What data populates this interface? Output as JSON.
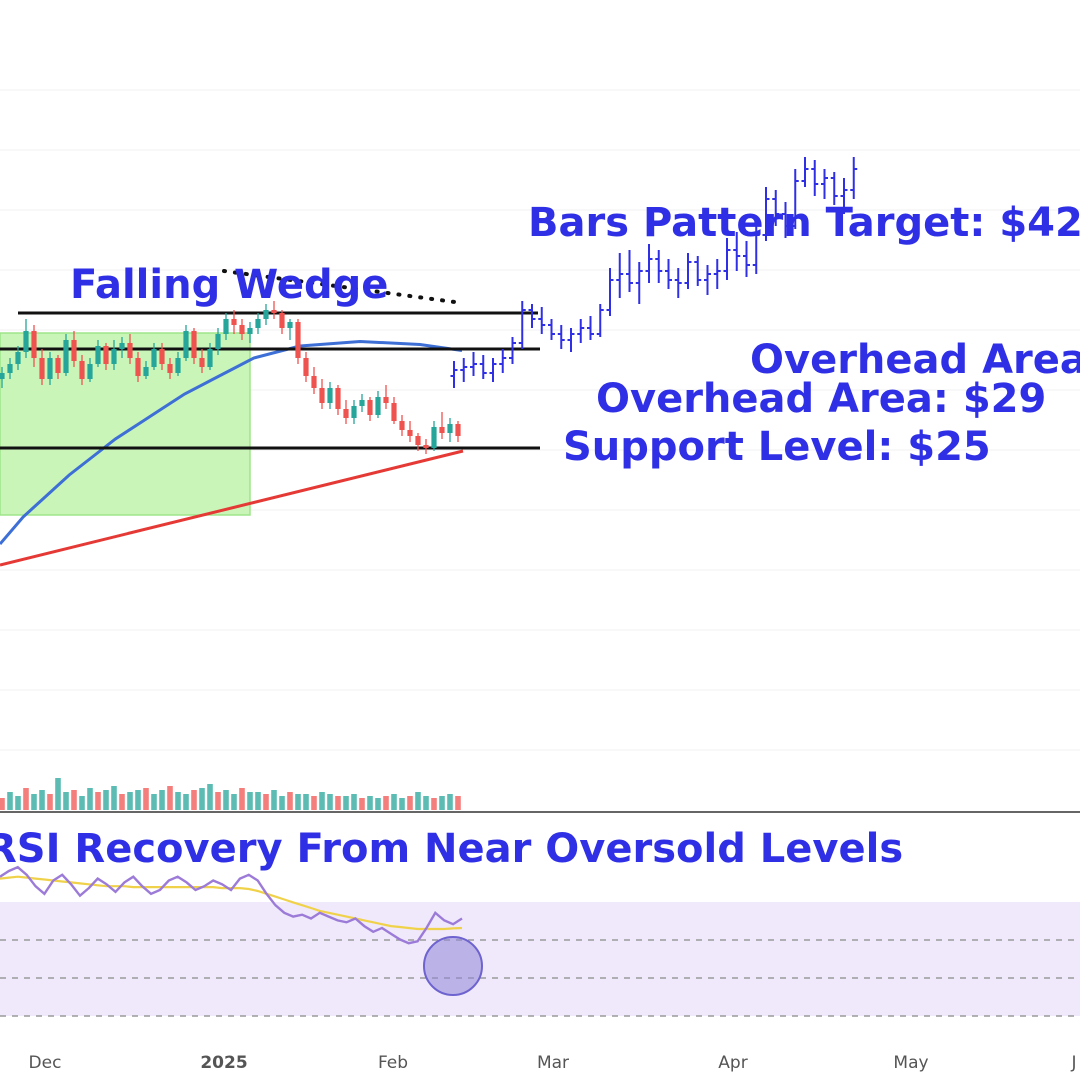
{
  "chart_data": {
    "type": "candlestick",
    "main_panel": {
      "wedge_candles": [
        [
          27.6,
          28.0,
          27.3,
          27.8
        ],
        [
          27.8,
          28.3,
          27.6,
          28.1
        ],
        [
          28.1,
          28.7,
          27.9,
          28.5
        ],
        [
          28.5,
          29.6,
          28.3,
          29.2
        ],
        [
          29.2,
          29.4,
          28.0,
          28.3
        ],
        [
          28.3,
          28.6,
          27.4,
          27.6
        ],
        [
          27.6,
          28.5,
          27.4,
          28.3
        ],
        [
          28.3,
          28.4,
          27.6,
          27.8
        ],
        [
          27.8,
          29.1,
          27.7,
          28.9
        ],
        [
          28.9,
          29.2,
          28.0,
          28.2
        ],
        [
          28.2,
          28.4,
          27.4,
          27.6
        ],
        [
          27.6,
          28.3,
          27.5,
          28.1
        ],
        [
          28.1,
          28.9,
          28.0,
          28.7
        ],
        [
          28.7,
          28.8,
          27.9,
          28.1
        ],
        [
          28.1,
          28.9,
          27.9,
          28.6
        ],
        [
          28.6,
          29.0,
          28.3,
          28.8
        ],
        [
          28.8,
          29.1,
          28.1,
          28.3
        ],
        [
          28.3,
          28.5,
          27.5,
          27.7
        ],
        [
          27.7,
          28.2,
          27.6,
          28.0
        ],
        [
          28.0,
          28.8,
          27.9,
          28.6
        ],
        [
          28.6,
          28.8,
          27.9,
          28.1
        ],
        [
          28.1,
          28.3,
          27.6,
          27.8
        ],
        [
          27.8,
          28.5,
          27.7,
          28.3
        ],
        [
          28.3,
          29.4,
          28.2,
          29.2
        ],
        [
          29.2,
          29.3,
          28.1,
          28.3
        ],
        [
          28.3,
          28.6,
          27.8,
          28.0
        ],
        [
          28.0,
          28.8,
          27.9,
          28.6
        ],
        [
          28.6,
          29.3,
          28.4,
          29.1
        ],
        [
          29.1,
          29.8,
          28.9,
          29.6
        ],
        [
          29.6,
          29.9,
          29.1,
          29.4
        ],
        [
          29.4,
          29.6,
          28.9,
          29.1
        ],
        [
          29.1,
          29.5,
          28.8,
          29.3
        ],
        [
          29.3,
          29.8,
          29.1,
          29.6
        ],
        [
          29.6,
          30.1,
          29.4,
          29.9
        ],
        [
          29.9,
          30.2,
          29.6,
          29.8
        ],
        [
          29.8,
          29.9,
          29.1,
          29.3
        ],
        [
          29.3,
          29.6,
          28.9,
          29.5
        ],
        [
          29.5,
          29.6,
          28.1,
          28.3
        ],
        [
          28.3,
          28.5,
          27.5,
          27.7
        ],
        [
          27.7,
          28.0,
          27.1,
          27.3
        ],
        [
          27.3,
          27.6,
          26.6,
          26.8
        ],
        [
          26.8,
          27.5,
          26.6,
          27.3
        ],
        [
          27.3,
          27.4,
          26.4,
          26.6
        ],
        [
          26.6,
          26.9,
          26.1,
          26.3
        ],
        [
          26.3,
          26.9,
          26.1,
          26.7
        ],
        [
          26.7,
          27.1,
          26.5,
          26.9
        ],
        [
          26.9,
          27.0,
          26.2,
          26.4
        ],
        [
          26.4,
          27.2,
          26.3,
          27.0
        ],
        [
          27.0,
          27.4,
          26.6,
          26.8
        ],
        [
          26.8,
          27.0,
          26.1,
          26.2
        ],
        [
          26.2,
          26.4,
          25.7,
          25.9
        ],
        [
          25.9,
          26.2,
          25.5,
          25.7
        ],
        [
          25.7,
          25.8,
          25.2,
          25.4
        ],
        [
          25.4,
          25.6,
          25.1,
          25.3
        ],
        [
          25.3,
          26.2,
          25.2,
          26.0
        ],
        [
          26.0,
          26.5,
          25.6,
          25.8
        ],
        [
          25.8,
          26.3,
          25.5,
          26.1
        ],
        [
          26.1,
          26.2,
          25.5,
          25.7
        ]
      ],
      "projected_bars": [
        [
          27.7,
          28.2,
          27.3,
          27.9
        ],
        [
          27.9,
          28.3,
          27.5,
          28.0
        ],
        [
          28.0,
          28.5,
          27.7,
          28.1
        ],
        [
          28.1,
          28.4,
          27.6,
          27.8
        ],
        [
          27.8,
          28.3,
          27.5,
          28.1
        ],
        [
          28.1,
          28.6,
          27.8,
          28.3
        ],
        [
          28.3,
          29.0,
          28.1,
          28.8
        ],
        [
          28.8,
          30.2,
          28.6,
          29.9
        ],
        [
          29.9,
          30.1,
          29.3,
          29.6
        ],
        [
          29.6,
          30.0,
          29.1,
          29.4
        ],
        [
          29.4,
          29.6,
          28.9,
          29.1
        ],
        [
          29.1,
          29.4,
          28.6,
          28.9
        ],
        [
          28.9,
          29.3,
          28.5,
          29.1
        ],
        [
          29.1,
          29.6,
          28.8,
          29.3
        ],
        [
          29.3,
          29.7,
          28.9,
          29.1
        ],
        [
          29.1,
          30.1,
          29.0,
          29.9
        ],
        [
          29.9,
          31.3,
          29.7,
          30.9
        ],
        [
          30.9,
          31.8,
          30.3,
          31.1
        ],
        [
          31.1,
          31.9,
          30.5,
          30.8
        ],
        [
          30.8,
          31.5,
          30.1,
          31.2
        ],
        [
          31.2,
          32.1,
          30.8,
          31.6
        ],
        [
          31.6,
          31.9,
          30.8,
          31.2
        ],
        [
          31.2,
          31.6,
          30.6,
          30.9
        ],
        [
          30.9,
          31.3,
          30.3,
          30.8
        ],
        [
          30.8,
          31.8,
          30.6,
          31.5
        ],
        [
          31.5,
          31.7,
          30.7,
          30.9
        ],
        [
          30.9,
          31.4,
          30.4,
          31.1
        ],
        [
          31.1,
          31.6,
          30.6,
          31.2
        ],
        [
          31.2,
          32.3,
          30.9,
          31.9
        ],
        [
          31.9,
          32.5,
          31.2,
          31.7
        ],
        [
          31.7,
          32.2,
          31.0,
          31.4
        ],
        [
          31.4,
          32.8,
          31.1,
          32.4
        ],
        [
          32.4,
          34.0,
          32.2,
          33.6
        ],
        [
          33.6,
          33.9,
          32.7,
          33.1
        ],
        [
          33.1,
          33.5,
          32.3,
          32.7
        ],
        [
          32.7,
          34.6,
          32.6,
          34.2
        ],
        [
          34.2,
          35.0,
          34.0,
          34.6
        ],
        [
          34.6,
          34.9,
          33.7,
          34.1
        ],
        [
          34.1,
          34.6,
          33.6,
          34.3
        ],
        [
          34.3,
          34.5,
          33.4,
          33.7
        ],
        [
          33.7,
          34.3,
          33.1,
          33.9
        ],
        [
          33.9,
          35.0,
          33.6,
          34.6
        ]
      ],
      "horizontal_levels": [
        29.8,
        28.6,
        25.3
      ],
      "wedge_upper_line": [
        [
          31.2,
          26.2
        ],
        [
          30.0,
          25.6
        ]
      ],
      "moving_average_blue": [
        22.1,
        23.0,
        23.7,
        24.4,
        25.0,
        25.6,
        26.1,
        26.6,
        27.1,
        27.5,
        27.9,
        28.3,
        28.5,
        28.7
      ],
      "moving_average_red": [
        21.4,
        25.2
      ]
    },
    "volume": [
      6,
      9,
      7,
      11,
      8,
      10,
      8,
      16,
      9,
      10,
      7,
      11,
      9,
      10,
      12,
      8,
      9,
      10,
      11,
      8,
      10,
      12,
      9,
      8,
      10,
      11,
      13,
      9,
      10,
      8,
      11,
      9,
      9,
      8,
      10,
      7,
      9,
      8,
      8,
      7,
      9,
      8,
      7,
      7,
      8,
      6,
      7,
      6,
      7,
      8,
      6,
      7,
      9,
      7,
      6,
      7,
      8,
      7
    ],
    "rsi": {
      "line": [
        57,
        60,
        62,
        58,
        52,
        48,
        55,
        58,
        53,
        47,
        51,
        56,
        53,
        49,
        54,
        57,
        52,
        48,
        50,
        55,
        57,
        54,
        50,
        52,
        55,
        53,
        50,
        56,
        58,
        55,
        48,
        42,
        38,
        36,
        37,
        35,
        38,
        36,
        34,
        33,
        35,
        31,
        28,
        30,
        27,
        24,
        22,
        23,
        30,
        38,
        34,
        32,
        35
      ],
      "average": [
        56,
        56.5,
        57,
        56.5,
        56,
        55.5,
        55,
        54.5,
        54,
        53.5,
        53,
        52.5,
        52,
        52,
        52,
        51.5,
        51.5,
        51.5,
        51.5,
        51.5,
        51.5,
        51.5,
        51.5,
        51.5,
        51.5,
        51,
        51,
        51,
        50.5,
        49.5,
        48,
        46.5,
        45,
        43.5,
        42,
        40.5,
        39,
        38,
        37,
        36,
        35,
        34,
        33,
        32,
        31,
        30.5,
        30,
        29.5,
        29.5,
        29.5,
        29.5,
        29.8,
        30
      ],
      "levels": [
        70,
        50,
        30
      ]
    },
    "x_tick_labels": [
      "Dec",
      "2025",
      "Feb",
      "Mar",
      "Apr",
      "May",
      "J"
    ],
    "annotations": {
      "target": "Bars Pattern Target: $42",
      "wedge": "Falling Wedge",
      "overhead_upper": "Overhead Area:",
      "overhead": "Overhead Area: $29",
      "support": "Support Level: $25",
      "rsi": "RSI Recovery From Near Oversold Levels"
    },
    "colors": {
      "up": "#26a69a",
      "down": "#ef5350",
      "projection": "#2f2fe6",
      "annotation": "#2f2fe6",
      "wedge_box": "#c9f5b9",
      "ma_blue": "#3d6fd6",
      "ma_red": "#e53935",
      "rsi_line": "#9c7bd8",
      "rsi_avg": "#f0d24a",
      "rsi_band": "#efe9fb"
    }
  }
}
